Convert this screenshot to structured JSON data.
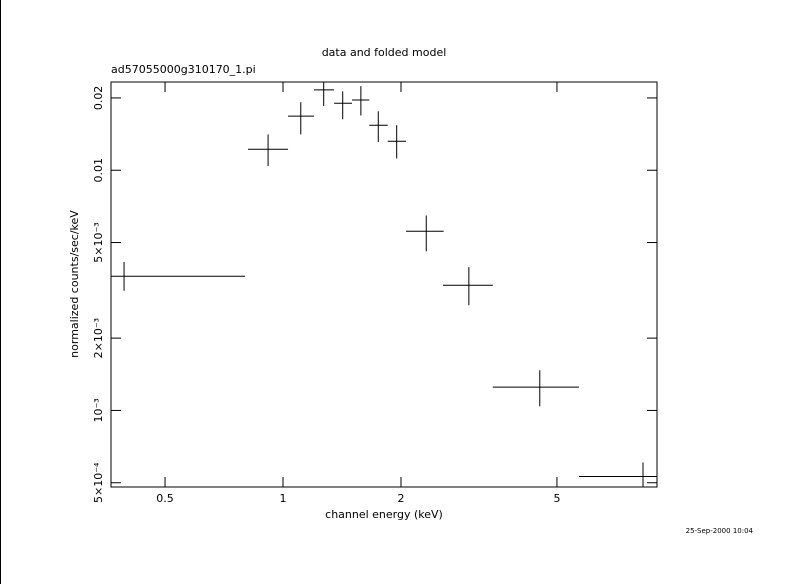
{
  "chart_data": {
    "type": "scatter",
    "title": "data and folded model",
    "subtitle": "ad57055000g310170_1.pi",
    "x_label": "channel energy (keV)",
    "y_label": "normalized counts/sec/keV",
    "timestamp": "25-Sep-2000 10:04",
    "log_x": true,
    "log_y": true,
    "xlim": [
      0.364,
      9.0
    ],
    "ylim": [
      0.00048,
      0.0233
    ],
    "xticks": [
      0.5,
      1,
      2,
      5
    ],
    "yticks": [
      {
        "value": 0.0005,
        "label": "5×10⁻⁴"
      },
      {
        "value": 0.001,
        "label": "10⁻³"
      },
      {
        "value": 0.002,
        "label": "2×10⁻³"
      },
      {
        "value": 0.005,
        "label": "5×10⁻³"
      },
      0.01,
      0.02
    ],
    "series": [
      {
        "color": "#000000",
        "x": [
          0.393,
          0.916,
          1.11,
          1.27,
          1.42,
          1.58,
          1.75,
          1.95,
          2.32,
          2.98,
          4.52,
          8.29
        ],
        "x_lo": [
          0.364,
          0.814,
          1.03,
          1.2,
          1.35,
          1.5,
          1.66,
          1.85,
          2.06,
          2.56,
          3.43,
          5.69
        ],
        "x_hi": [
          0.8,
          1.03,
          1.2,
          1.35,
          1.5,
          1.66,
          1.85,
          2.06,
          2.57,
          3.43,
          5.69,
          9.0
        ],
        "values": [
          0.00362,
          0.01223,
          0.0168,
          0.0216,
          0.019,
          0.0196,
          0.0154,
          0.0132,
          0.00557,
          0.00332,
          0.00125,
          0.000531
        ],
        "y_lo": [
          0.00315,
          0.0104,
          0.0141,
          0.0185,
          0.0163,
          0.0169,
          0.0131,
          0.0112,
          0.0046,
          0.00274,
          0.00104,
          0.00048
        ],
        "y_hi": [
          0.00415,
          0.0141,
          0.0192,
          0.0233,
          0.0213,
          0.0224,
          0.0176,
          0.0154,
          0.00648,
          0.00395,
          0.00147,
          0.000608
        ]
      }
    ]
  }
}
